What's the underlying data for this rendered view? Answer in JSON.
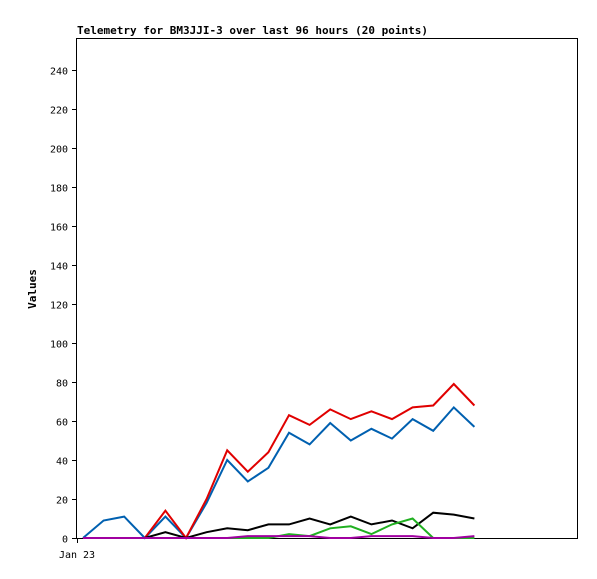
{
  "chart_data": {
    "type": "line",
    "title": "Telemetry for BM3JJI-3 over last 96 hours (20 points)",
    "ylabel": "Values",
    "xlabel": "",
    "ylim": [
      0,
      256
    ],
    "yticks": [
      0,
      20,
      40,
      60,
      80,
      100,
      120,
      140,
      160,
      180,
      200,
      220,
      240
    ],
    "xtick_labels": [
      "Jan 23"
    ],
    "grid": false,
    "legend": "none",
    "x_count": 20,
    "series": [
      {
        "color": "#0060b0",
        "values": [
          0,
          9,
          11,
          0,
          11,
          0,
          18,
          40,
          29,
          36,
          54,
          48,
          59,
          50,
          56,
          51,
          61,
          55,
          67,
          57
        ]
      },
      {
        "color": "#e00000",
        "values": [
          0,
          0,
          0,
          0,
          14,
          0,
          20,
          45,
          34,
          44,
          63,
          58,
          66,
          61,
          65,
          61,
          67,
          68,
          79,
          68
        ]
      },
      {
        "color": "#000000",
        "values": [
          0,
          0,
          0,
          0,
          3,
          0,
          3,
          5,
          4,
          7,
          7,
          10,
          7,
          11,
          7,
          9,
          5,
          13,
          12,
          10
        ]
      },
      {
        "color": "#20b020",
        "values": [
          0,
          0,
          0,
          0,
          0,
          0,
          0,
          0,
          0,
          0,
          2,
          1,
          5,
          6,
          2,
          7,
          10,
          0,
          0,
          0
        ]
      },
      {
        "color": "#a000a0",
        "values": [
          0,
          0,
          0,
          0,
          0,
          0,
          0,
          0,
          1,
          1,
          1,
          1,
          0,
          0,
          1,
          1,
          1,
          0,
          0,
          1
        ]
      }
    ]
  }
}
